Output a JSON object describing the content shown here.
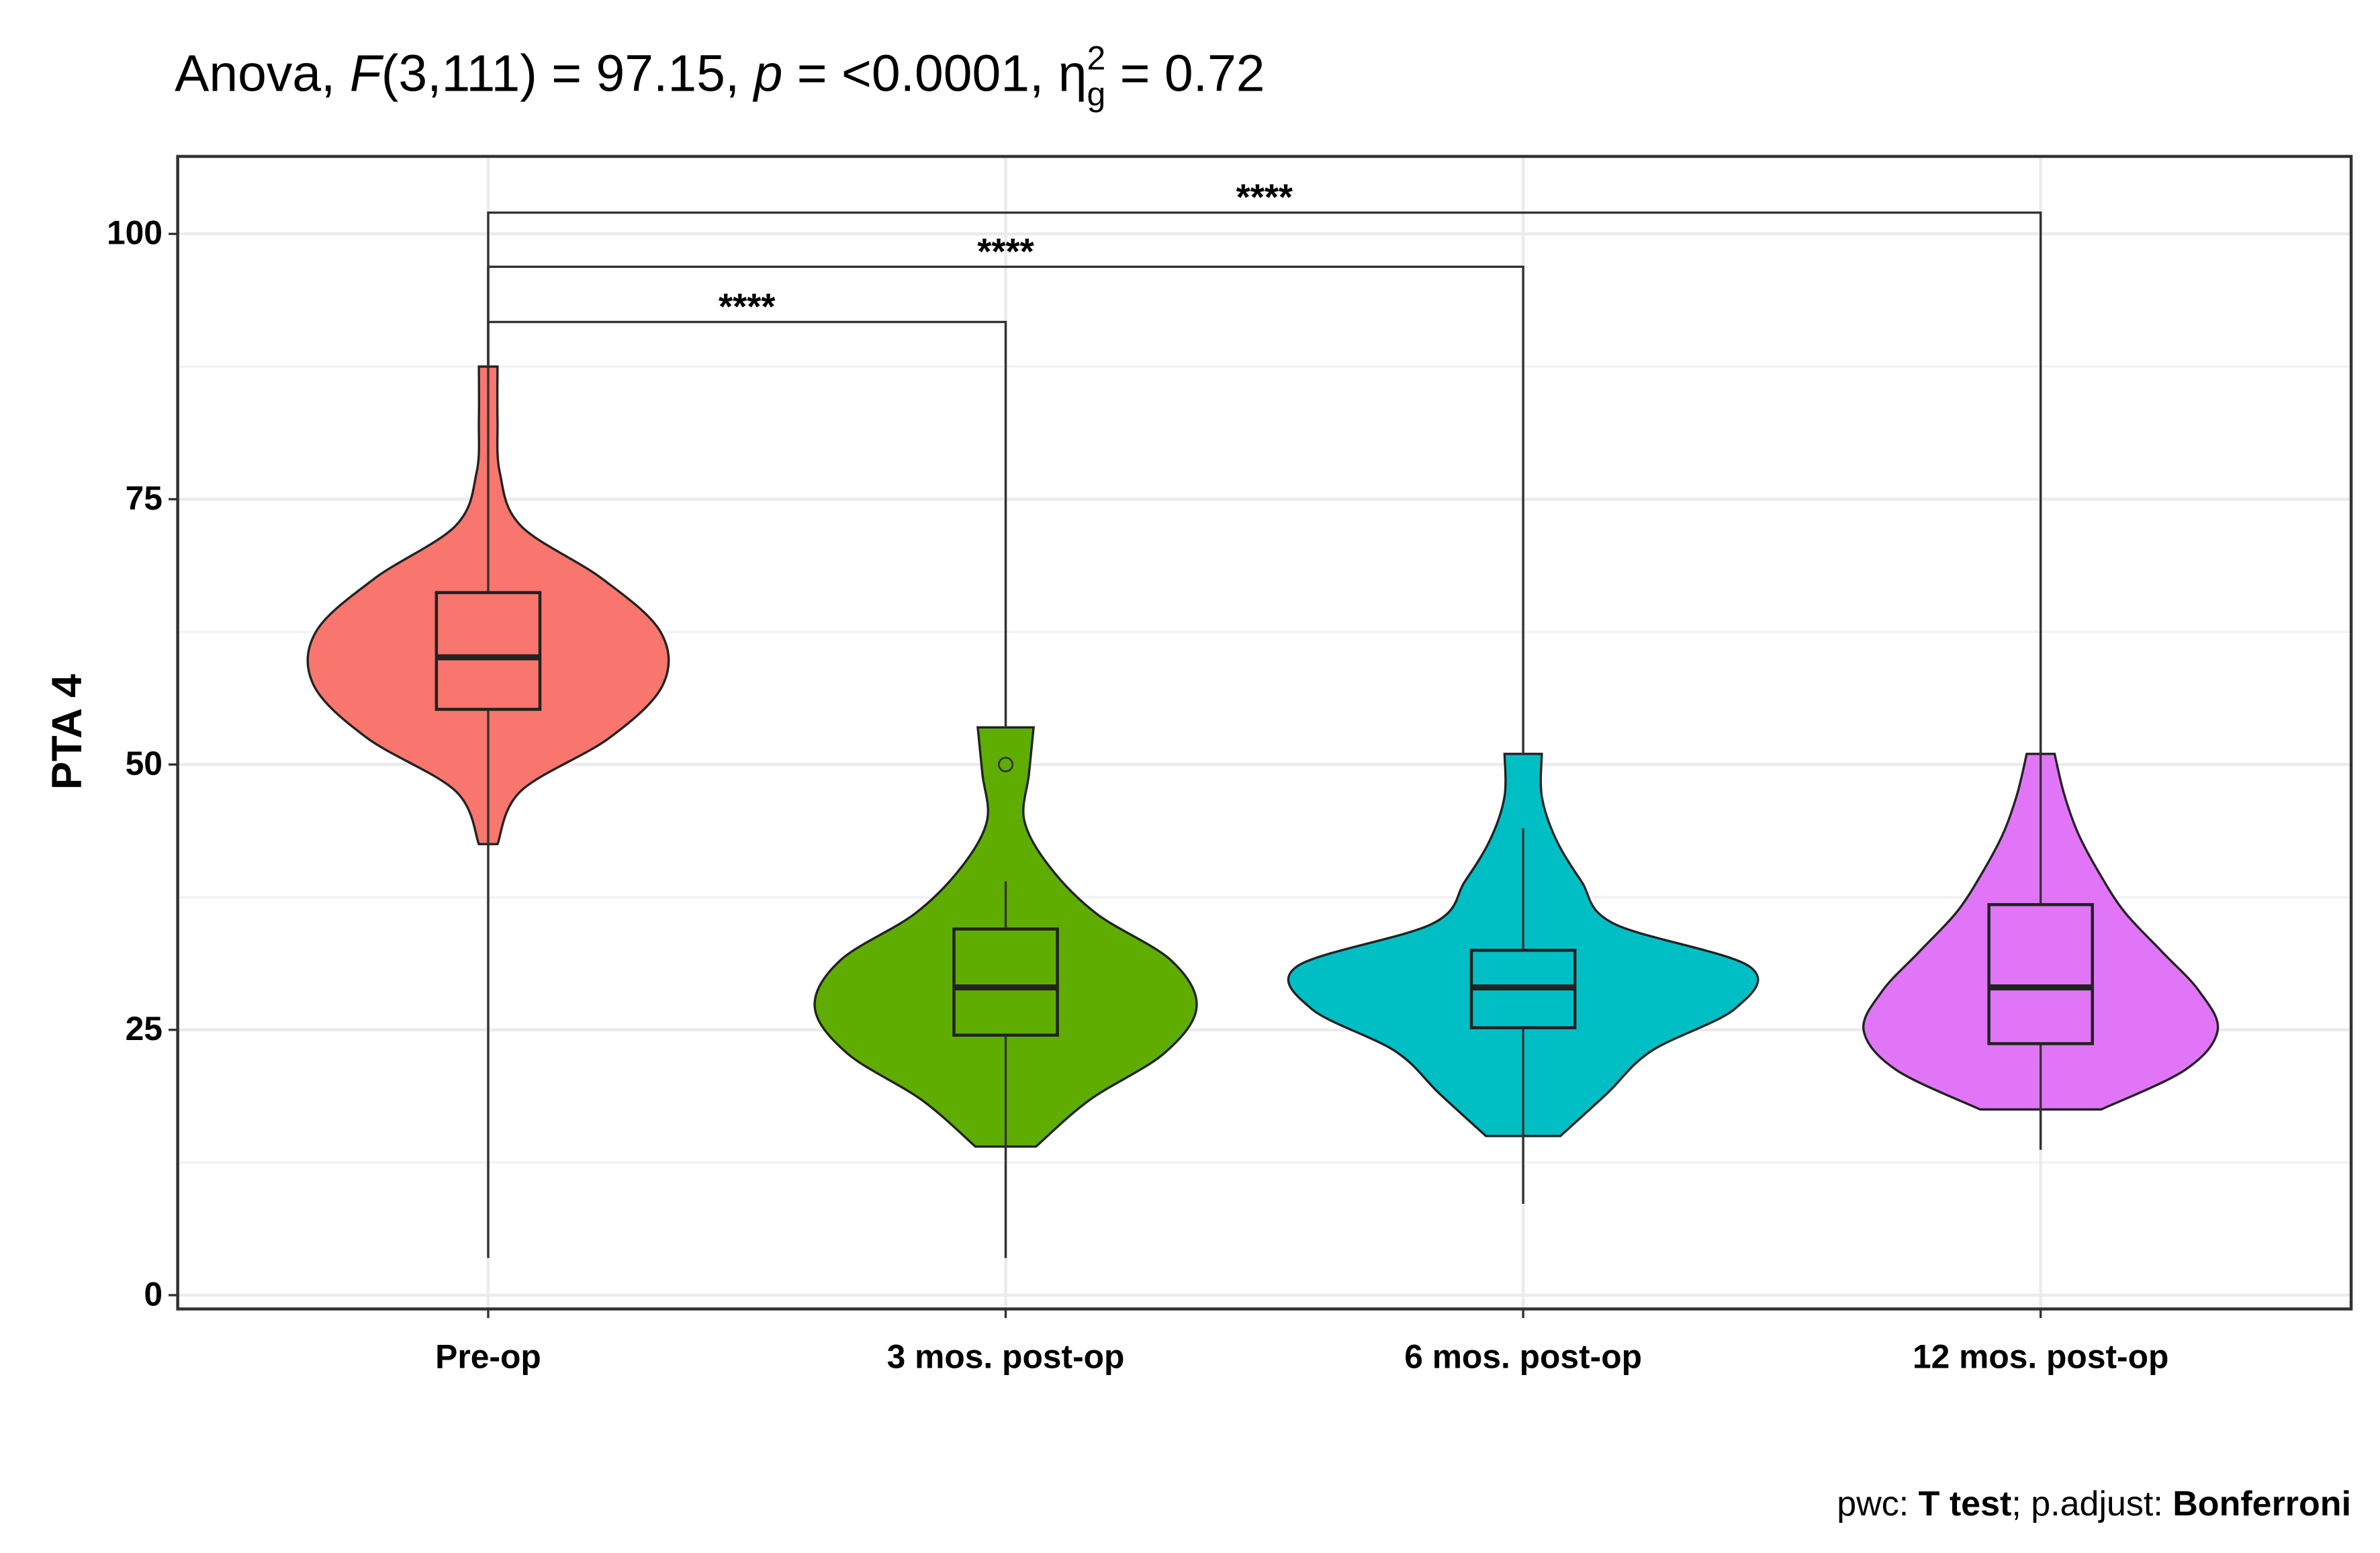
{
  "chart_data": {
    "type": "violin",
    "title": [
      {
        "text": "Anova, "
      },
      {
        "text": "F",
        "style": "italic"
      },
      {
        "text": "(3,111) = 97.15, "
      },
      {
        "text": "p",
        "style": "italic"
      },
      {
        "text": " = <0.0001, "
      },
      {
        "text": "η"
      },
      {
        "text": "g",
        "style": "sub"
      },
      {
        "text": "2",
        "style": "sup"
      },
      {
        "text": " = 0.72"
      }
    ],
    "caption": [
      {
        "text": "pwc: "
      },
      {
        "text": "T test",
        "style": "bold"
      },
      {
        "text": "; p.adjust: "
      },
      {
        "text": "Bonferroni",
        "style": "bold"
      }
    ],
    "y_label": "PTA 4",
    "categories": [
      "Pre-op",
      "3 mos. post-op",
      "6 mos. post-op",
      "12 mos. post-op"
    ],
    "ylim": [
      -1.3,
      107.3
    ],
    "yticks": [
      0,
      25,
      50,
      75,
      100
    ],
    "grid": true,
    "series": [
      {
        "color": "#f8766d",
        "violin_range": [
          42.5,
          87.5
        ],
        "density": [
          0.04,
          0.14,
          0.52,
          0.75,
          0.74,
          0.49,
          0.14,
          0.05,
          0.04,
          0.04
        ],
        "box": {
          "whisker_low": 3.5,
          "q1": 55.2,
          "median": 60.1,
          "q3": 66.2,
          "whisker_high": 87.4
        },
        "outliers": []
      },
      {
        "color": "#5fad00",
        "violin_range": [
          14,
          53.5
        ],
        "density": [
          0.13,
          0.36,
          0.68,
          0.82,
          0.71,
          0.39,
          0.19,
          0.08,
          0.1,
          0.12
        ],
        "box": {
          "whisker_low": 3.5,
          "q1": 24.5,
          "median": 29,
          "q3": 34.5,
          "whisker_high": 39
        },
        "outliers": [
          50
        ]
      },
      {
        "color": "#00bfc4",
        "violin_range": [
          15,
          51
        ],
        "density": [
          0.16,
          0.36,
          0.55,
          0.91,
          0.97,
          0.39,
          0.25,
          0.14,
          0.08,
          0.08
        ],
        "box": {
          "whisker_low": 8.6,
          "q1": 25.2,
          "median": 29,
          "q3": 32.5,
          "whisker_high": 44
        },
        "outliers": []
      },
      {
        "color": "#e076f7",
        "violin_range": [
          17.5,
          51
        ],
        "density": [
          0.26,
          0.62,
          0.76,
          0.68,
          0.52,
          0.36,
          0.25,
          0.16,
          0.1,
          0.06
        ],
        "box": {
          "whisker_low": 13.7,
          "q1": 23.7,
          "median": 29,
          "q3": 36.8,
          "whisker_high": 51.4
        },
        "outliers": []
      }
    ],
    "comparisons": [
      {
        "groups": [
          0,
          1
        ],
        "y": 91.7,
        "label": "****"
      },
      {
        "groups": [
          0,
          2
        ],
        "y": 96.9,
        "label": "****"
      },
      {
        "groups": [
          0,
          3
        ],
        "y": 102,
        "label": "****"
      }
    ]
  }
}
